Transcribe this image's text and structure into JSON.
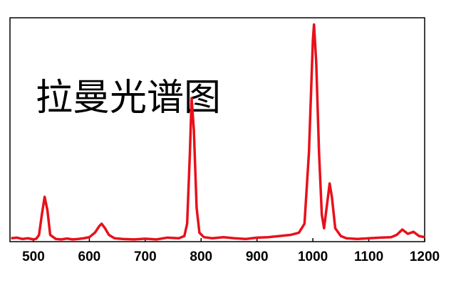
{
  "chart_data": {
    "type": "line",
    "annotation": "拉曼光谱图",
    "x": [
      460,
      470,
      480,
      490,
      500,
      505,
      510,
      515,
      520,
      525,
      530,
      540,
      550,
      560,
      570,
      580,
      590,
      600,
      610,
      618,
      622,
      628,
      635,
      645,
      660,
      680,
      700,
      720,
      740,
      760,
      770,
      775,
      780,
      783,
      787,
      792,
      797,
      805,
      820,
      840,
      860,
      880,
      900,
      920,
      940,
      960,
      975,
      985,
      993,
      1000,
      1002,
      1006,
      1011,
      1016,
      1020,
      1025,
      1030,
      1034,
      1040,
      1050,
      1060,
      1080,
      1100,
      1120,
      1140,
      1150,
      1160,
      1170,
      1180,
      1190,
      1200
    ],
    "series": [
      {
        "color": "#e8101a",
        "values": [
          1.5,
          1.8,
          1.2,
          1.5,
          1.0,
          1.3,
          3,
          12,
          20,
          14,
          3,
          1.2,
          1.0,
          1.4,
          1.0,
          1.2,
          1.5,
          2,
          4,
          7,
          8,
          6,
          3,
          1.5,
          1.2,
          1.0,
          1.3,
          1.0,
          1.8,
          1.5,
          2.5,
          8,
          40,
          64,
          50,
          15,
          4,
          2,
          1.5,
          2,
          1.5,
          1.2,
          1.8,
          2,
          2.5,
          3,
          4,
          8,
          40,
          90,
          97,
          80,
          40,
          12,
          6,
          16,
          26,
          20,
          6,
          2.5,
          1.5,
          1.2,
          1.5,
          1.8,
          2,
          3,
          5.4,
          3.5,
          4.4,
          2.5,
          2
        ]
      }
    ],
    "xlim": [
      458,
      1200
    ],
    "xticks": [
      500,
      600,
      700,
      800,
      900,
      1000,
      1100,
      1200
    ],
    "ylim": [
      0,
      100
    ]
  }
}
